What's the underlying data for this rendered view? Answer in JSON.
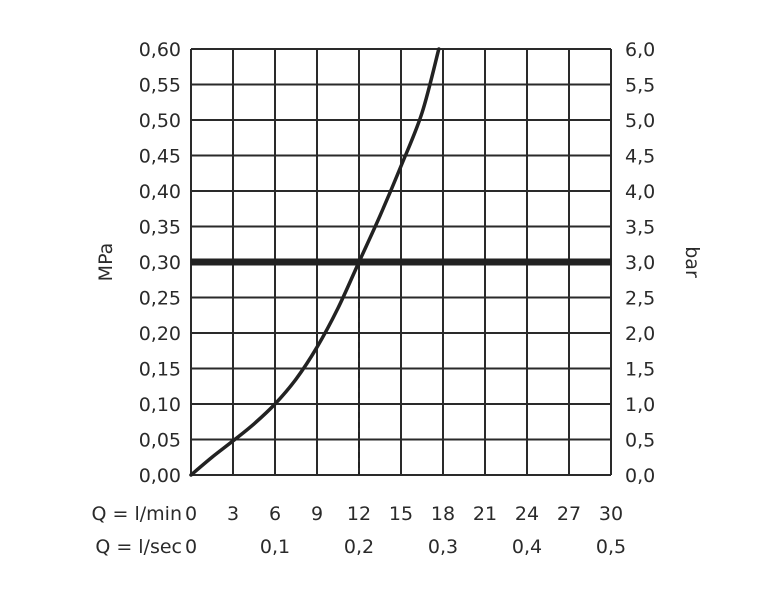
{
  "chart_data": {
    "type": "line",
    "left_axis": {
      "label": "MPa",
      "ylim": [
        0,
        0.6
      ],
      "ticks": [
        "0,00",
        "0,05",
        "0,10",
        "0,15",
        "0,20",
        "0,25",
        "0,30",
        "0,35",
        "0,40",
        "0,45",
        "0,50",
        "0,55",
        "0,60"
      ]
    },
    "right_axis": {
      "label": "bar",
      "ylim": [
        0,
        6
      ],
      "ticks": [
        "0,0",
        "0,5",
        "1,0",
        "1,5",
        "2,0",
        "2,5",
        "3,0",
        "3,5",
        "4,0",
        "4,5",
        "5,0",
        "5,5",
        "6,0"
      ]
    },
    "x_axis_lmin": {
      "label": "Q = l/min",
      "xlim": [
        0,
        30
      ],
      "ticks": [
        "0",
        "3",
        "6",
        "9",
        "12",
        "15",
        "18",
        "21",
        "24",
        "27",
        "30"
      ]
    },
    "x_axis_lsec": {
      "label": "Q = l/sec",
      "ticks": [
        "0",
        "0,1",
        "0,2",
        "0,3",
        "0,4",
        "0,5"
      ]
    },
    "grid": true,
    "series": [
      {
        "x": [
          0,
          1.5,
          3,
          4.5,
          6,
          7.5,
          9,
          10.5,
          12,
          13.5,
          15,
          16.5,
          17.7
        ],
        "y": [
          0,
          0.025,
          0.048,
          0.072,
          0.1,
          0.135,
          0.18,
          0.235,
          0.3,
          0.365,
          0.435,
          0.51,
          0.6
        ]
      }
    ],
    "reference_line_y": 0.3,
    "reference_drop_x": 12,
    "colors": {
      "curve": "#222222",
      "grid": "#2a2a2a",
      "reference": "#222222"
    }
  }
}
